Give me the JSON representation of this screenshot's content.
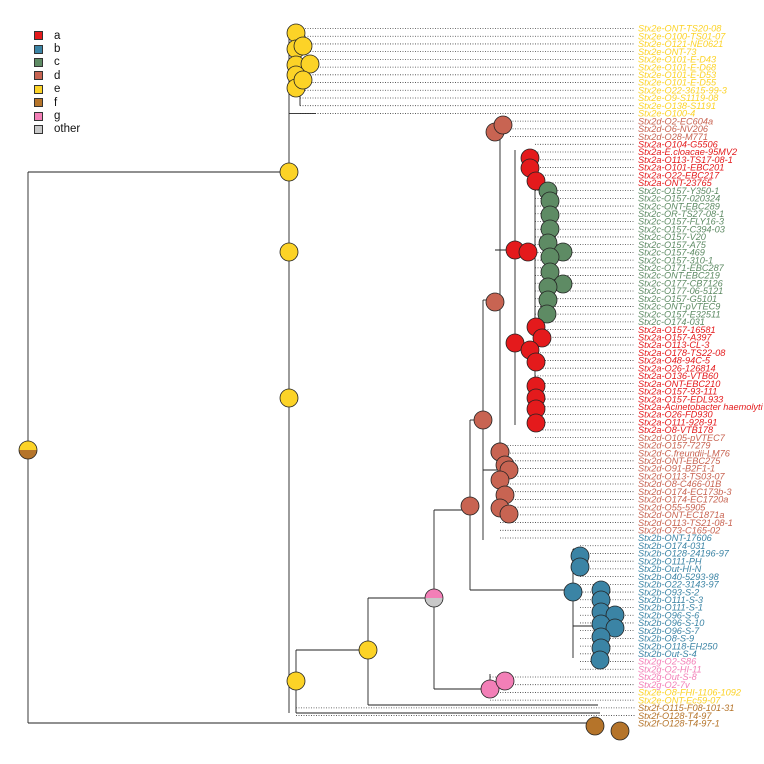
{
  "palette": {
    "a": "#e41a1c",
    "b": "#3b84a5",
    "c": "#5e8b64",
    "d": "#c86452",
    "e": "#fcd327",
    "f": "#b5742a",
    "g": "#f37fb7",
    "other": "#c8c8c8"
  },
  "legend": [
    {
      "key": "a",
      "label": "a"
    },
    {
      "key": "b",
      "label": "b"
    },
    {
      "key": "c",
      "label": "c"
    },
    {
      "key": "d",
      "label": "d"
    },
    {
      "key": "e",
      "label": "e"
    },
    {
      "key": "f",
      "label": "f"
    },
    {
      "key": "g",
      "label": "g"
    },
    {
      "key": "other",
      "label": "other"
    }
  ],
  "tips": [
    {
      "label": "Stx2e-ONT-TS20-08",
      "group": "e"
    },
    {
      "label": "Stx2e-O100-TS01-07",
      "group": "e"
    },
    {
      "label": "Stx2e-O121-NE0621",
      "group": "e"
    },
    {
      "label": "Stx2e-ONT-73",
      "group": "e"
    },
    {
      "label": "Stx2e-O101-E-D43",
      "group": "e"
    },
    {
      "label": "Stx2e-O101-E-D68",
      "group": "e"
    },
    {
      "label": "Stx2e-O101-E-D53",
      "group": "e"
    },
    {
      "label": "Stx2e-O101-E-D55",
      "group": "e"
    },
    {
      "label": "Stx2e-O22-3615-99-3",
      "group": "e"
    },
    {
      "label": "Stx2e-O9-S1119-08",
      "group": "e"
    },
    {
      "label": "Stx2e-O138-S1191",
      "group": "e"
    },
    {
      "label": "Stx2e-O100-4",
      "group": "e"
    },
    {
      "label": "Stx2d-O2-EC604a",
      "group": "d"
    },
    {
      "label": "Stx2d-O6-NV206",
      "group": "d"
    },
    {
      "label": "Stx2d-O28-M771",
      "group": "d"
    },
    {
      "label": "Stx2a-O104-G5506",
      "group": "a"
    },
    {
      "label": "Stx2a-E.cloacae-95MV2",
      "group": "a"
    },
    {
      "label": "Stx2a-O113-TS17-08-1",
      "group": "a"
    },
    {
      "label": "Stx2a-O101-EBC201",
      "group": "a"
    },
    {
      "label": "Stx2a-O22-EBC217",
      "group": "a"
    },
    {
      "label": "Stx2a-ONT-23765",
      "group": "a"
    },
    {
      "label": "Stx2c-O157-Y350-1",
      "group": "c"
    },
    {
      "label": "Stx2c-O157-020324",
      "group": "c"
    },
    {
      "label": "Stx2c-ONT-EBC289",
      "group": "c"
    },
    {
      "label": "Stx2c-OR-TS27-08-1",
      "group": "c"
    },
    {
      "label": "Stx2c-O157-FLY16-3",
      "group": "c"
    },
    {
      "label": "Stx2c-O157-C394-03",
      "group": "c"
    },
    {
      "label": "Stx2c-O157-V20",
      "group": "c"
    },
    {
      "label": "Stx2c-O157-A75",
      "group": "c"
    },
    {
      "label": "Stx2c-O157-469",
      "group": "c"
    },
    {
      "label": "Stx2c-O157-310-1",
      "group": "c"
    },
    {
      "label": "Stx2c-O171-EBC287",
      "group": "c"
    },
    {
      "label": "Stx2c-ONT-EBC219",
      "group": "c"
    },
    {
      "label": "Stx2c-O177-CB7126",
      "group": "c"
    },
    {
      "label": "Stx2c-O177-06-5121",
      "group": "c"
    },
    {
      "label": "Stx2c-O157-G5101",
      "group": "c"
    },
    {
      "label": "Stx2c-ONT-pVTEC9",
      "group": "c"
    },
    {
      "label": "Stx2c-O157-E32511",
      "group": "c"
    },
    {
      "label": "Stx2c-O174-031",
      "group": "c"
    },
    {
      "label": "Stx2a-O157-16581",
      "group": "a"
    },
    {
      "label": "Stx2a-O157-A397",
      "group": "a"
    },
    {
      "label": "Stx2a-O113-CL-3",
      "group": "a"
    },
    {
      "label": "Stx2a-O178-TS22-08",
      "group": "a"
    },
    {
      "label": "Stx2a-O48-94C-5",
      "group": "a"
    },
    {
      "label": "Stx2a-O26-126814",
      "group": "a"
    },
    {
      "label": "Stx2a-O136-VTB60",
      "group": "a"
    },
    {
      "label": "Stx2a-ONT-EBC210",
      "group": "a"
    },
    {
      "label": "Stx2a-O157-93-111",
      "group": "a"
    },
    {
      "label": "Stx2a-O157-EDL933",
      "group": "a"
    },
    {
      "label": "Stx2a-Acinetobacter haemolyti",
      "group": "a"
    },
    {
      "label": "Stx2a-O26-FD930",
      "group": "a"
    },
    {
      "label": "Stx2a-O111-928-91",
      "group": "a"
    },
    {
      "label": "Stx2a-O8-VTB178",
      "group": "a"
    },
    {
      "label": "Stx2d-O105-pVTEC7",
      "group": "d"
    },
    {
      "label": "Stx2d-O157-7279",
      "group": "d"
    },
    {
      "label": "Stx2d-C.freundii-LM76",
      "group": "d"
    },
    {
      "label": "Stx2d-ONT-EBC275",
      "group": "d"
    },
    {
      "label": "Stx2d-O91-B2F1-1",
      "group": "d"
    },
    {
      "label": "Stx2d-O113-TS03-07",
      "group": "d"
    },
    {
      "label": "Stx2d-O8-C466-01B",
      "group": "d"
    },
    {
      "label": "Stx2d-O174-EC173b-3",
      "group": "d"
    },
    {
      "label": "Stx2d-O174-EC1720a",
      "group": "d"
    },
    {
      "label": "Stx2d-O55-5905",
      "group": "d"
    },
    {
      "label": "Stx2d-ONT-EC1871a",
      "group": "d"
    },
    {
      "label": "Stx2d-O113-TS21-08-1",
      "group": "d"
    },
    {
      "label": "Stx2d-O73-C165-02",
      "group": "d"
    },
    {
      "label": "Stx2b-ONT-17606",
      "group": "b"
    },
    {
      "label": "Stx2b-O174-031",
      "group": "b"
    },
    {
      "label": "Stx2b-O128-24196-97",
      "group": "b"
    },
    {
      "label": "Stx2b-O111-PH",
      "group": "b"
    },
    {
      "label": "Stx2b-Out-HI-N",
      "group": "b"
    },
    {
      "label": "Stx2b-O40-5293-98",
      "group": "b"
    },
    {
      "label": "Stx2b-O22-3143-97",
      "group": "b"
    },
    {
      "label": "Stx2b-O93-S-2",
      "group": "b"
    },
    {
      "label": "Stx2b-O111-S-3",
      "group": "b"
    },
    {
      "label": "Stx2b-O111-S-1",
      "group": "b"
    },
    {
      "label": "Stx2b-O96-S-6",
      "group": "b"
    },
    {
      "label": "Stx2b-O96-S-10",
      "group": "b"
    },
    {
      "label": "Stx2b-O96-S-7",
      "group": "b"
    },
    {
      "label": "Stx2b-O8-S-9",
      "group": "b"
    },
    {
      "label": "Stx2b-O118-EH250",
      "group": "b"
    },
    {
      "label": "Stx2b-Out-S-4",
      "group": "b"
    },
    {
      "label": "Stx2g-O2-S86",
      "group": "g"
    },
    {
      "label": "Stx2g-O2-HI-11",
      "group": "g"
    },
    {
      "label": "Stx2g-Out-S-8",
      "group": "g"
    },
    {
      "label": "Stx2g-O2-7v",
      "group": "g"
    },
    {
      "label": "Stx2e-O8-FHI-1106-1092",
      "group": "e"
    },
    {
      "label": "Stx2e-ONT-Ec59-07",
      "group": "e"
    },
    {
      "label": "Stx2f-O115-F08-101-31",
      "group": "f"
    },
    {
      "label": "Stx2f-O128-T4-97",
      "group": "f"
    },
    {
      "label": "Stx2f-O128-T4-97-1",
      "group": "f"
    }
  ]
}
